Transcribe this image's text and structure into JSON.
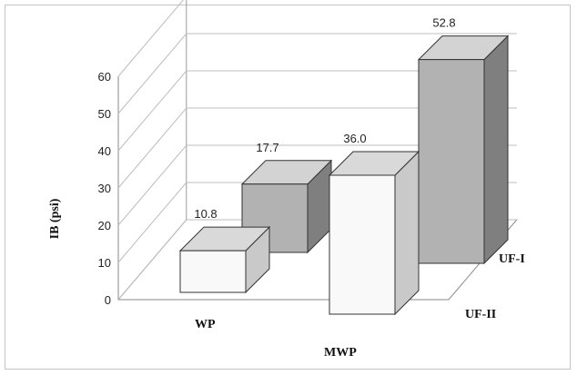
{
  "chart_data": {
    "type": "bar",
    "title": "",
    "ylabel": "IB (psi)",
    "ylim": [
      0,
      60
    ],
    "yticks": [
      "0",
      "10",
      "20",
      "30",
      "40",
      "50",
      "60"
    ],
    "categories": [
      "WP",
      "MWP"
    ],
    "series": [
      {
        "name": "UF-II",
        "values": [
          10.8,
          36.0
        ],
        "labels": [
          "10.8",
          "36.0"
        ]
      },
      {
        "name": "UF-I",
        "values": [
          17.7,
          52.8
        ],
        "labels": [
          "17.7",
          "52.8"
        ]
      }
    ],
    "grid": true,
    "colors": {
      "light_front": "#f9f9f9",
      "light_top": "#d9d9d9",
      "light_side": "#c9c9c9",
      "dark_front": "#b2b2b2",
      "dark_top": "#d3d3d3",
      "dark_side": "#7f7f7f",
      "frame": "#c4c4c4",
      "grid": "#bdbdbd",
      "edge": "#333333"
    }
  }
}
